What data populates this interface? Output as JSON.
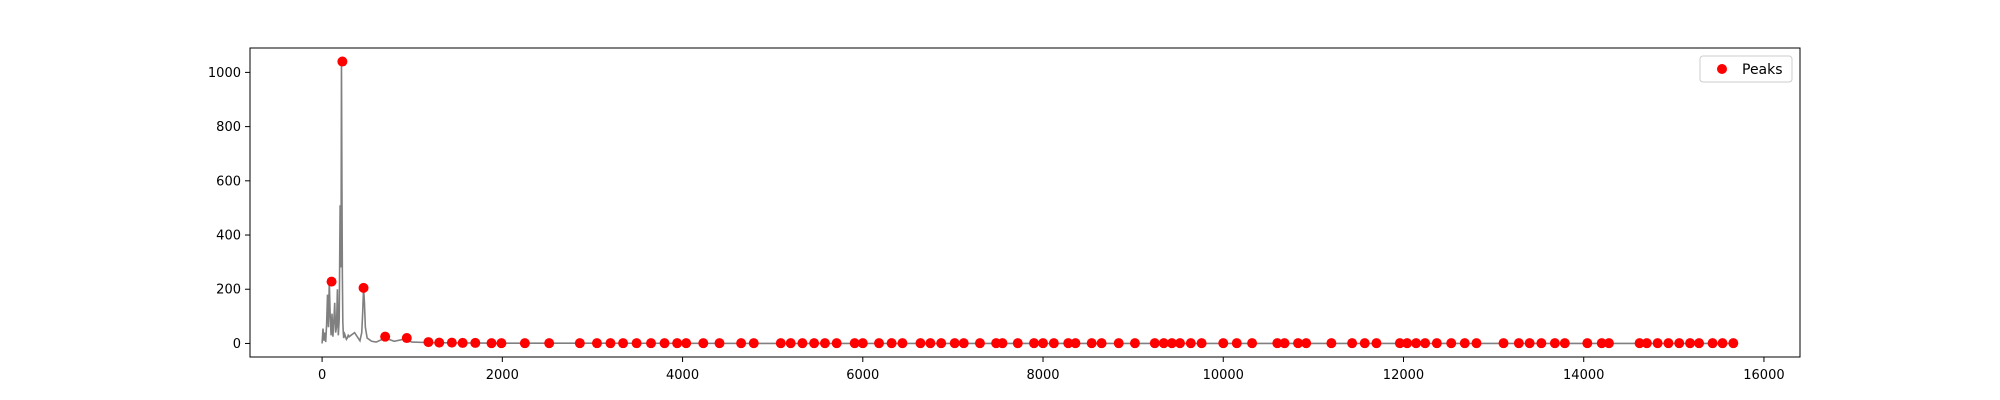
{
  "chart_data": {
    "type": "line",
    "xlim": [
      -800,
      16400
    ],
    "ylim": [
      -50,
      1090
    ],
    "xticks": [
      0,
      2000,
      4000,
      6000,
      8000,
      10000,
      12000,
      14000,
      16000
    ],
    "yticks": [
      0,
      200,
      400,
      600,
      800,
      1000
    ],
    "grid": false,
    "legend_position": "top-right",
    "colors": {
      "signal": "#808080",
      "peaks": "#ff0000",
      "axes": "#000000"
    },
    "signal": {
      "x": [
        0,
        10,
        20,
        30,
        40,
        50,
        60,
        70,
        80,
        90,
        100,
        110,
        120,
        130,
        140,
        150,
        160,
        170,
        180,
        190,
        200,
        210,
        215,
        220,
        225,
        230,
        235,
        240,
        250,
        260,
        270,
        280,
        290,
        300,
        320,
        340,
        360,
        380,
        400,
        420,
        440,
        450,
        460,
        470,
        480,
        500,
        550,
        600,
        700,
        800,
        900,
        1000,
        1200,
        1500,
        2000,
        3000,
        5000,
        8000,
        12000,
        15700
      ],
      "y": [
        0,
        55,
        10,
        40,
        5,
        70,
        180,
        60,
        230,
        100,
        30,
        110,
        25,
        80,
        150,
        40,
        60,
        200,
        30,
        90,
        510,
        280,
        1040,
        600,
        250,
        80,
        40,
        20,
        35,
        25,
        15,
        20,
        30,
        25,
        30,
        35,
        40,
        30,
        20,
        10,
        40,
        110,
        205,
        150,
        60,
        20,
        8,
        5,
        20,
        8,
        15,
        5,
        3,
        2,
        1,
        1,
        0,
        0,
        0,
        0
      ]
    },
    "legend": [
      {
        "label": "Peaks",
        "marker": "circle"
      }
    ],
    "peaks": {
      "x": [
        105,
        225,
        460,
        700,
        940,
        1180,
        1300,
        1440,
        1560,
        1700,
        1880,
        1990,
        2250,
        2520,
        2860,
        3050,
        3200,
        3340,
        3490,
        3650,
        3800,
        3940,
        4040,
        4230,
        4410,
        4650,
        4790,
        5090,
        5200,
        5330,
        5460,
        5580,
        5710,
        5910,
        6000,
        6180,
        6320,
        6440,
        6640,
        6750,
        6870,
        7020,
        7120,
        7300,
        7480,
        7550,
        7720,
        7900,
        8000,
        8120,
        8280,
        8360,
        8540,
        8650,
        8840,
        9020,
        9240,
        9340,
        9430,
        9520,
        9640,
        9760,
        10000,
        10150,
        10320,
        10600,
        10680,
        10830,
        10920,
        11200,
        11430,
        11570,
        11700,
        11960,
        12040,
        12140,
        12240,
        12370,
        12530,
        12680,
        12810,
        13110,
        13280,
        13400,
        13530,
        13680,
        13790,
        14040,
        14200,
        14280,
        14620,
        14700,
        14820,
        14940,
        15060,
        15180,
        15280,
        15430,
        15540,
        15660
      ],
      "y": [
        228,
        1040,
        205,
        25,
        20,
        5,
        3,
        3,
        2,
        2,
        1,
        1,
        1,
        1,
        1,
        1,
        1,
        1,
        1,
        1,
        1,
        1,
        1,
        1,
        1,
        1,
        1,
        1,
        1,
        1,
        1,
        1,
        1,
        1,
        1,
        1,
        1,
        1,
        1,
        1,
        1,
        1,
        1,
        1,
        1,
        1,
        1,
        1,
        1,
        1,
        1,
        1,
        1,
        1,
        1,
        1,
        1,
        1,
        1,
        1,
        1,
        1,
        1,
        1,
        1,
        1,
        1,
        1,
        1,
        1,
        1,
        1,
        1,
        1,
        1,
        1,
        1,
        1,
        1,
        1,
        1,
        1,
        1,
        1,
        1,
        1,
        1,
        1,
        1,
        1,
        1,
        1,
        1,
        1,
        1,
        1,
        1,
        1,
        1,
        1
      ]
    }
  }
}
